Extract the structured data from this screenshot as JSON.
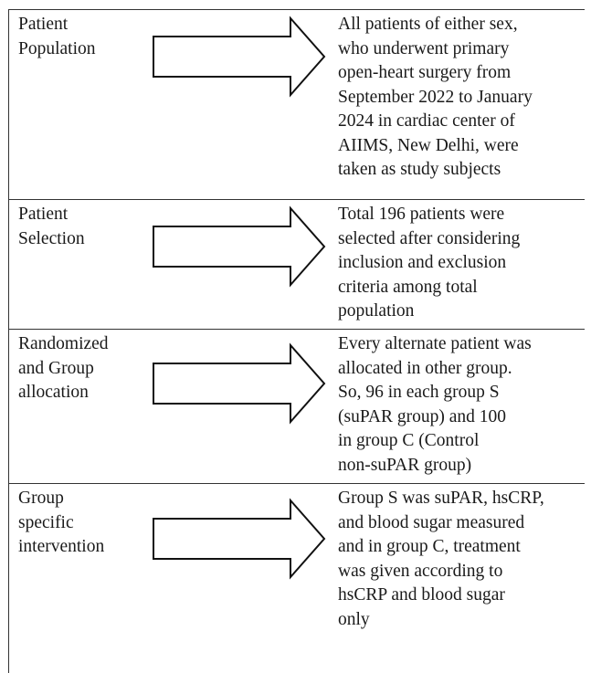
{
  "rows": [
    {
      "label": [
        "Patient",
        "Population"
      ],
      "text": [
        "All patients of either sex,",
        "who underwent primary",
        "open-heart surgery from",
        "September 2022 to January",
        "2024 in cardiac center of",
        "AIIMS, New Delhi, were",
        "taken as study subjects"
      ]
    },
    {
      "label": [
        "Patient",
        "Selection"
      ],
      "text": [
        "Total 196 patients were",
        "selected after considering",
        "inclusion and exclusion",
        "criteria among total",
        "population"
      ]
    },
    {
      "label": [
        "Randomized",
        "and Group",
        "allocation"
      ],
      "text": [
        "Every alternate patient was",
        "allocated in other group.",
        "So, 96 in each group S",
        "(suPAR group) and 100",
        "in group C (Control",
        "non-suPAR group)"
      ]
    },
    {
      "label": [
        "Group",
        "specific",
        "intervention"
      ],
      "text": [
        "Group S was suPAR, hsCRP,",
        "and blood sugar measured",
        "and in group C, treatment",
        "was given according to",
        "hsCRP and blood sugar",
        "only"
      ]
    }
  ]
}
